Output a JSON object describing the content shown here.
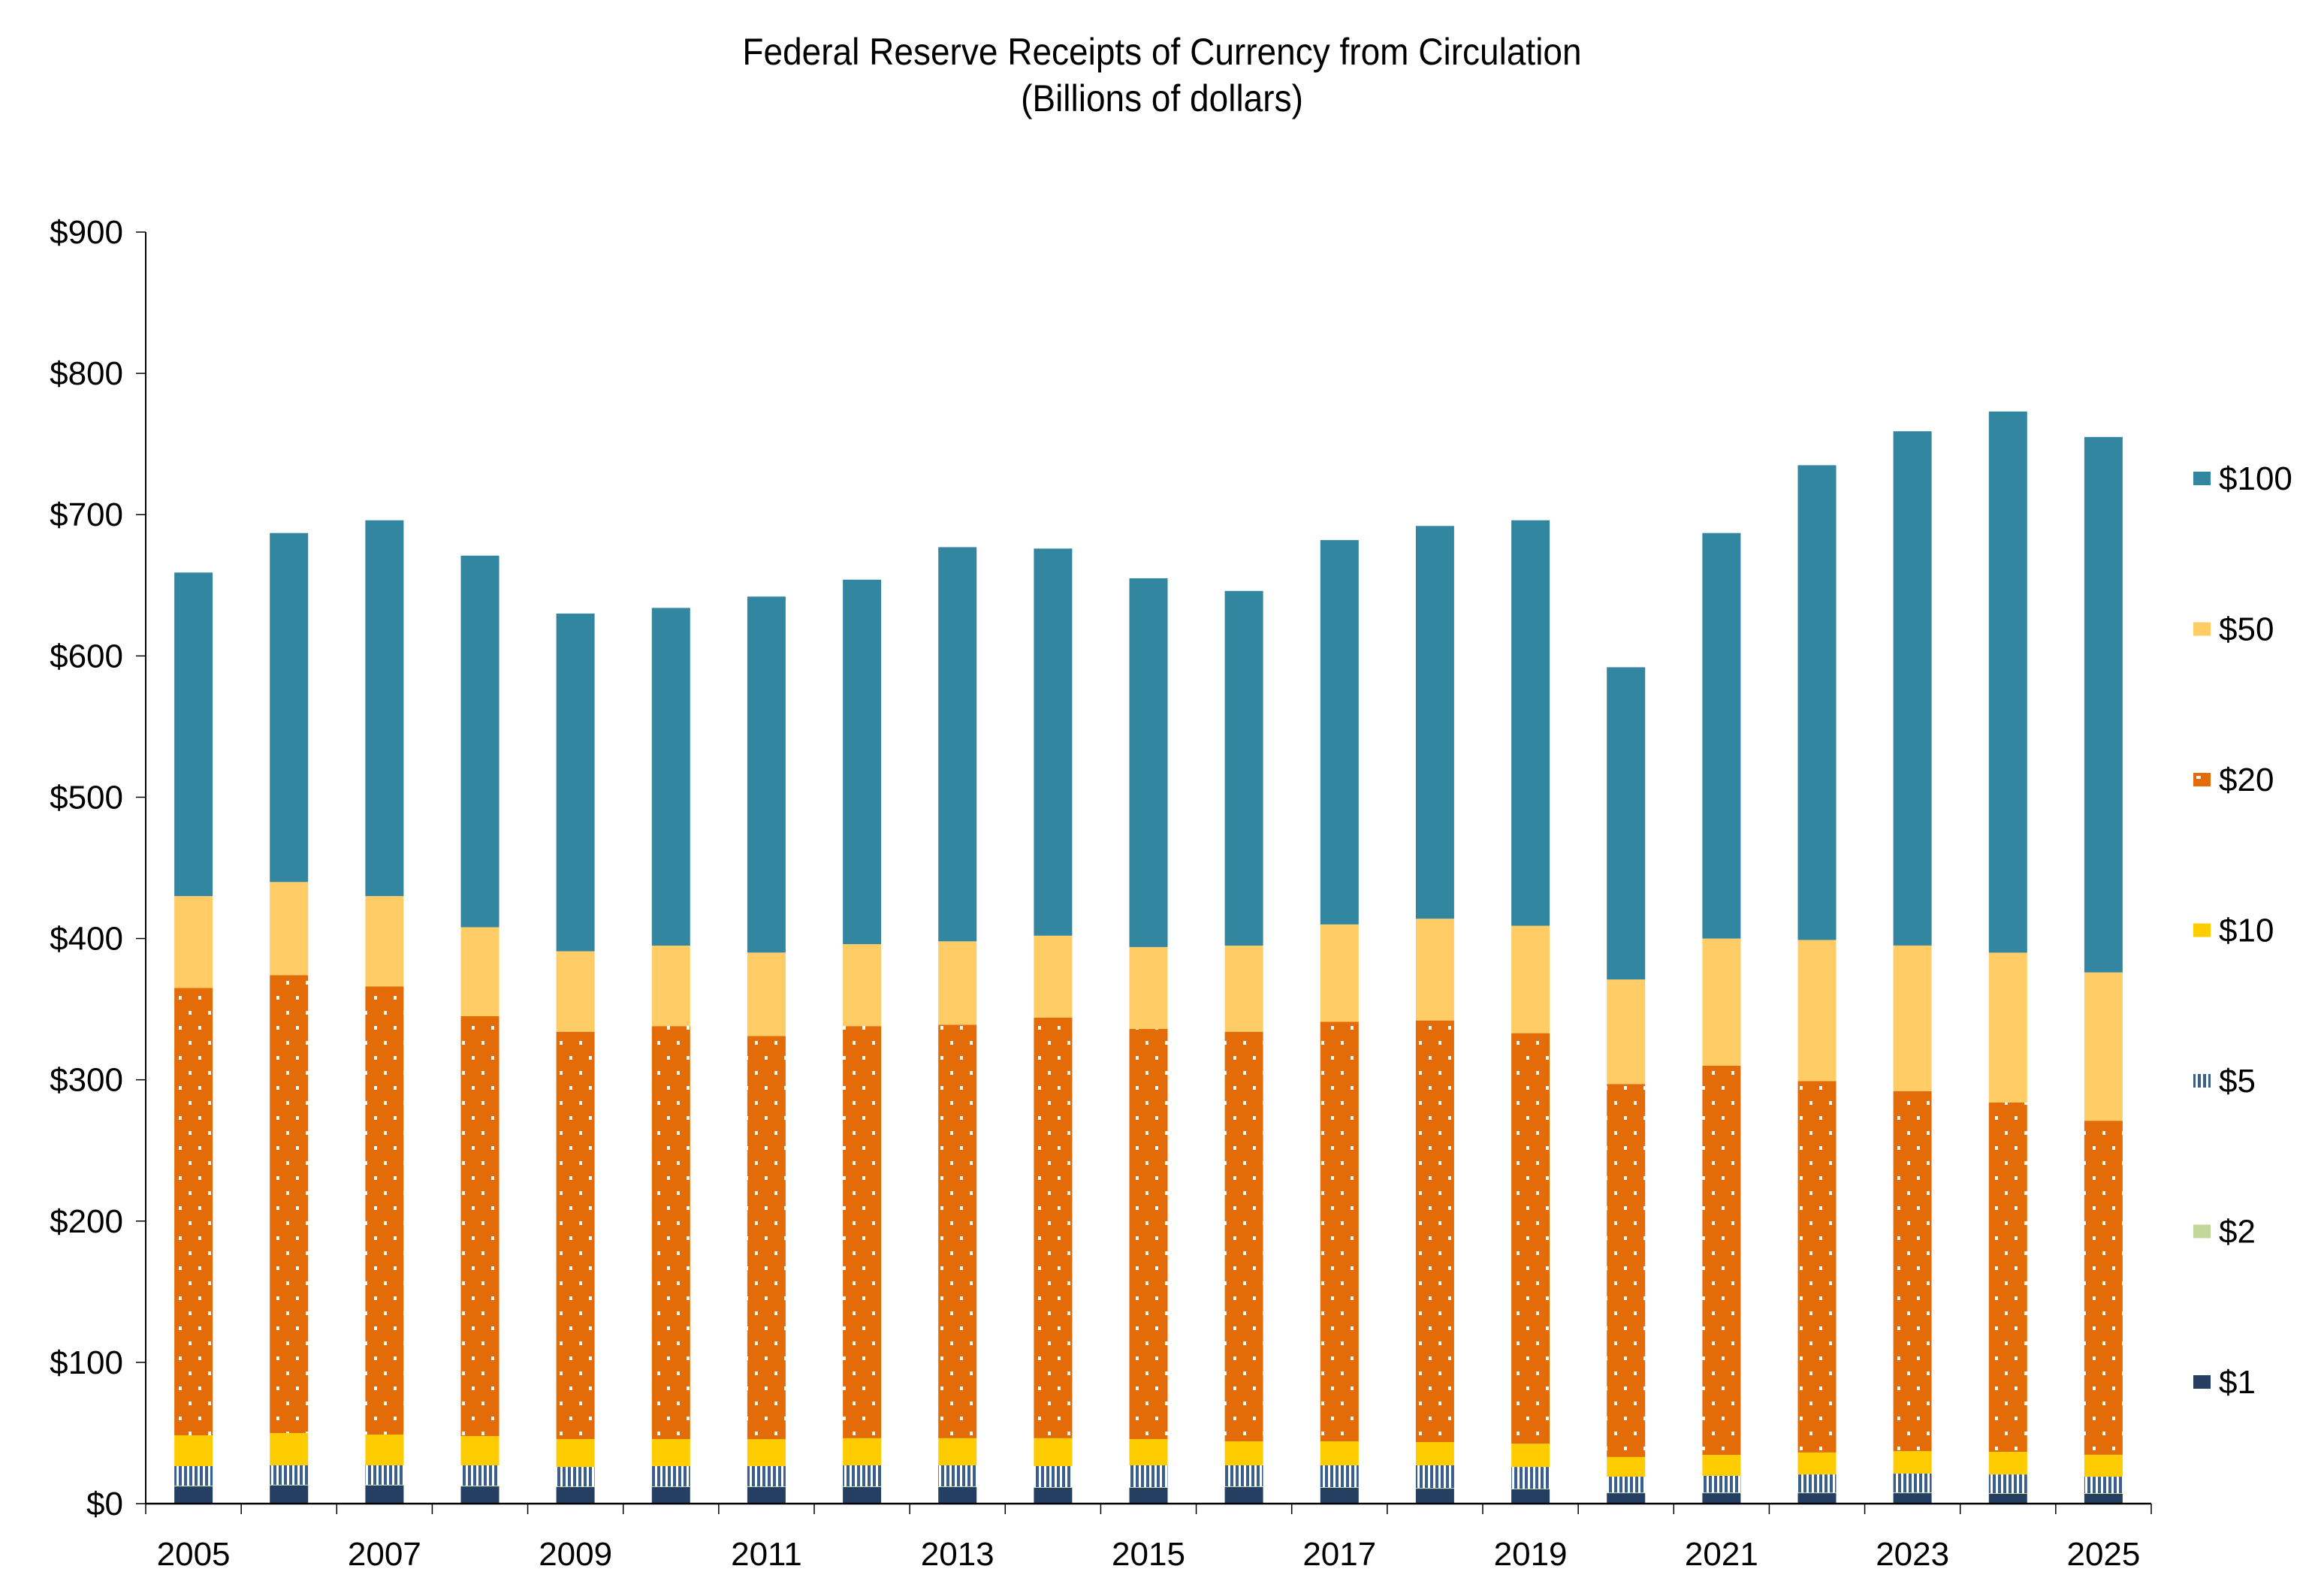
{
  "chart_data": {
    "type": "bar",
    "stacked": true,
    "title": "Federal Reserve Receipts of Currency from Circulation",
    "subtitle": "(Billions of dollars)",
    "xlabel": "",
    "ylabel": "",
    "ylim": [
      0,
      900
    ],
    "yticks": [
      0,
      100,
      200,
      300,
      400,
      500,
      600,
      700,
      800,
      900
    ],
    "ytick_labels": [
      "$0",
      "$100",
      "$200",
      "$300",
      "$400",
      "$500",
      "$600",
      "$700",
      "$800",
      "$900"
    ],
    "grid": false,
    "legend_position": "right",
    "categories": [
      "2005",
      "2006",
      "2007",
      "2008",
      "2009",
      "2010",
      "2011",
      "2012",
      "2013",
      "2014",
      "2015",
      "2016",
      "2017",
      "2018",
      "2019",
      "2020",
      "2021",
      "2022",
      "2023",
      "2024",
      "2025"
    ],
    "xtick_labels": [
      "2005",
      "",
      "2007",
      "",
      "2009",
      "",
      "2011",
      "",
      "2013",
      "",
      "2015",
      "",
      "2017",
      "",
      "2019",
      "",
      "2021",
      "",
      "2023",
      "",
      "2025"
    ],
    "series": [
      {
        "name": "$1",
        "color": "#253F63",
        "pattern": "solid",
        "values": [
          12.2,
          12.9,
          12.9,
          12.2,
          11.7,
          11.7,
          11.7,
          11.7,
          11.7,
          11.2,
          11.2,
          11.7,
          11.2,
          10.6,
          10.1,
          7.4,
          7.4,
          7.4,
          7.4,
          6.9,
          6.9
        ]
      },
      {
        "name": "$2",
        "color": "#C3D69B",
        "pattern": "solid",
        "values": [
          0.5,
          0.5,
          0.5,
          0.5,
          0.5,
          0.5,
          0.5,
          0.5,
          0.5,
          0.5,
          0.5,
          0.5,
          0.5,
          0.5,
          0.5,
          0.5,
          0.5,
          0.5,
          0.5,
          0.5,
          0.5
        ]
      },
      {
        "name": "$5",
        "color": "#3A5F8F",
        "pattern": "vertical-stripes",
        "values": [
          13.9,
          13.7,
          13.7,
          14.4,
          13.8,
          14.4,
          14.4,
          14.9,
          14.9,
          14.9,
          15.4,
          14.9,
          15.4,
          16.0,
          15.4,
          11.2,
          11.8,
          12.8,
          13.4,
          13.3,
          11.7
        ]
      },
      {
        "name": "$10",
        "color": "#FFCC00",
        "pattern": "solid",
        "values": [
          21.8,
          22.9,
          21.8,
          20.7,
          19.7,
          19.1,
          19.1,
          19.2,
          19.2,
          19.7,
          18.6,
          17.0,
          17.0,
          16.5,
          16.5,
          13.9,
          14.9,
          15.5,
          15.9,
          16.0,
          15.5
        ]
      },
      {
        "name": "$20",
        "color": "#E36C09",
        "pattern": "dots",
        "values": [
          316.6,
          324.0,
          317.1,
          297.2,
          288.3,
          292.3,
          285.3,
          291.7,
          292.7,
          297.7,
          290.3,
          289.9,
          296.9,
          298.4,
          290.5,
          264.0,
          275.4,
          262.8,
          254.8,
          247.3,
          236.4
        ]
      },
      {
        "name": "$50",
        "color": "#FFCC66",
        "pattern": "solid",
        "values": [
          65,
          66,
          64,
          63,
          57,
          57,
          59,
          58,
          59,
          58,
          58,
          61,
          69,
          72,
          76,
          74,
          90,
          100,
          103,
          106,
          105
        ]
      },
      {
        "name": "$100",
        "color": "#33869F",
        "pattern": "solid",
        "values": [
          229,
          247,
          266,
          263,
          239,
          239,
          252,
          258,
          279,
          274,
          261,
          251,
          272,
          278,
          287,
          221,
          287,
          336,
          364,
          383,
          379
        ]
      }
    ],
    "totals": [
      659,
      687,
      696,
      671,
      630,
      634,
      642,
      654,
      677,
      676,
      655,
      646,
      682,
      692,
      696,
      592,
      687,
      735,
      759,
      773,
      755
    ],
    "legend_order": [
      "$100",
      "$50",
      "$20",
      "$10",
      "$5",
      "$2",
      "$1"
    ]
  }
}
